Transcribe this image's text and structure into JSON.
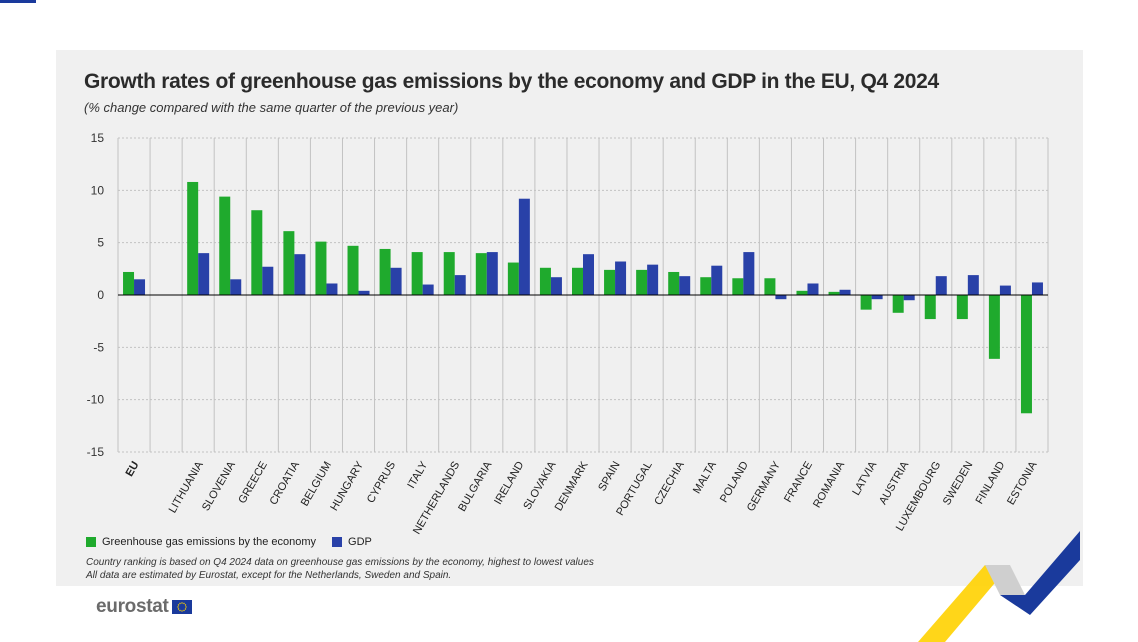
{
  "header": {
    "title": "Growth rates of greenhouse gas emissions by the economy and GDP in the EU, Q4 2024",
    "subtitle": "(% change compared with the same quarter of the previous year)"
  },
  "legend": {
    "ghg_label": "Greenhouse gas emissions by the economy",
    "gdp_label": "GDP"
  },
  "notes": {
    "line1": "Country ranking is based on Q4 2024 data on greenhouse gas emissions by the economy, highest to lowest values",
    "line2": "All data are estimated by Eurostat, except for the Netherlands, Sweden and Spain."
  },
  "logo": {
    "text": "eurostat",
    "flag_icon": "eu-flag-icon"
  },
  "colors": {
    "ghg": "#1faa2d",
    "gdp": "#2941a8",
    "grid": "#c2c2c2",
    "panel": "#f0f0f0"
  },
  "chart_data": {
    "type": "bar",
    "categories": [
      "EU",
      "",
      "LITHUANIA",
      "SLOVENIA",
      "GREECE",
      "CROATIA",
      "BELGIUM",
      "HUNGARY",
      "CYPRUS",
      "ITALY",
      "NETHERLANDS",
      "BULGARIA",
      "IRELAND",
      "SLOVAKIA",
      "DENMARK",
      "SPAIN",
      "PORTUGAL",
      "CZECHIA",
      "MALTA",
      "POLAND",
      "GERMANY",
      "FRANCE",
      "ROMANIA",
      "LATVIA",
      "AUSTRIA",
      "LUXEMBOURG",
      "SWEDEN",
      "FINLAND",
      "ESTONIA"
    ],
    "series": [
      {
        "name": "Greenhouse gas emissions by the economy",
        "color": "#1faa2d",
        "values": [
          2.2,
          null,
          10.8,
          9.4,
          8.1,
          6.1,
          5.1,
          4.7,
          4.4,
          4.1,
          4.1,
          4.0,
          3.1,
          2.6,
          2.6,
          2.4,
          2.4,
          2.2,
          1.7,
          1.6,
          1.6,
          0.4,
          0.3,
          -1.4,
          -1.7,
          -2.3,
          -2.3,
          -6.1,
          -11.3
        ]
      },
      {
        "name": "GDP",
        "color": "#2941a8",
        "values": [
          1.5,
          null,
          4.0,
          1.5,
          2.7,
          3.9,
          1.1,
          0.4,
          2.6,
          1.0,
          1.9,
          4.1,
          9.2,
          1.7,
          3.9,
          3.2,
          2.9,
          1.8,
          2.8,
          4.1,
          -0.4,
          1.1,
          0.5,
          -0.4,
          -0.5,
          1.8,
          1.9,
          0.9,
          1.2
        ]
      }
    ],
    "yticks": [
      15,
      10,
      5,
      0,
      -5,
      -10,
      -15
    ],
    "ylim": [
      -15,
      15
    ],
    "grid": true,
    "legend_position": "bottom-left"
  }
}
